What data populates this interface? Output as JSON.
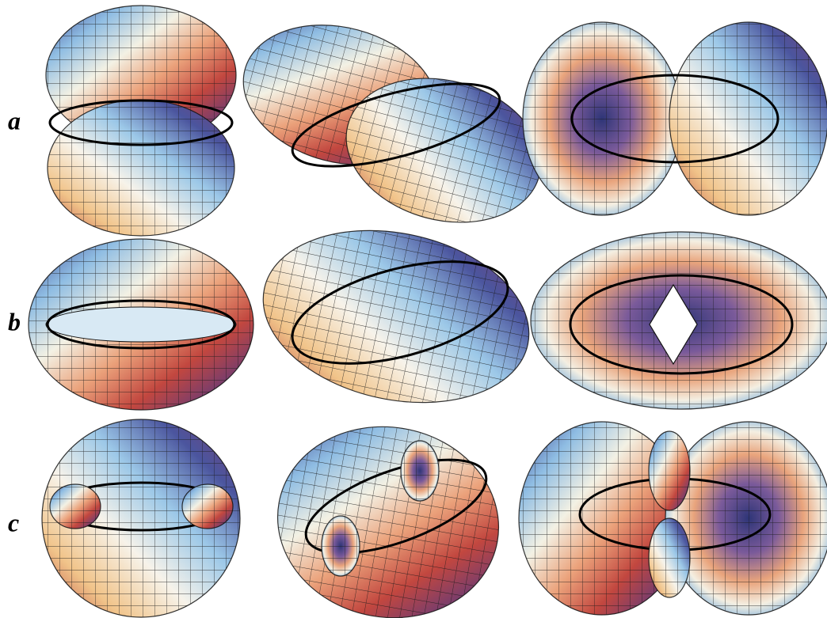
{
  "rows": [
    {
      "label": "a"
    },
    {
      "label": "b"
    },
    {
      "label": "c"
    }
  ]
}
